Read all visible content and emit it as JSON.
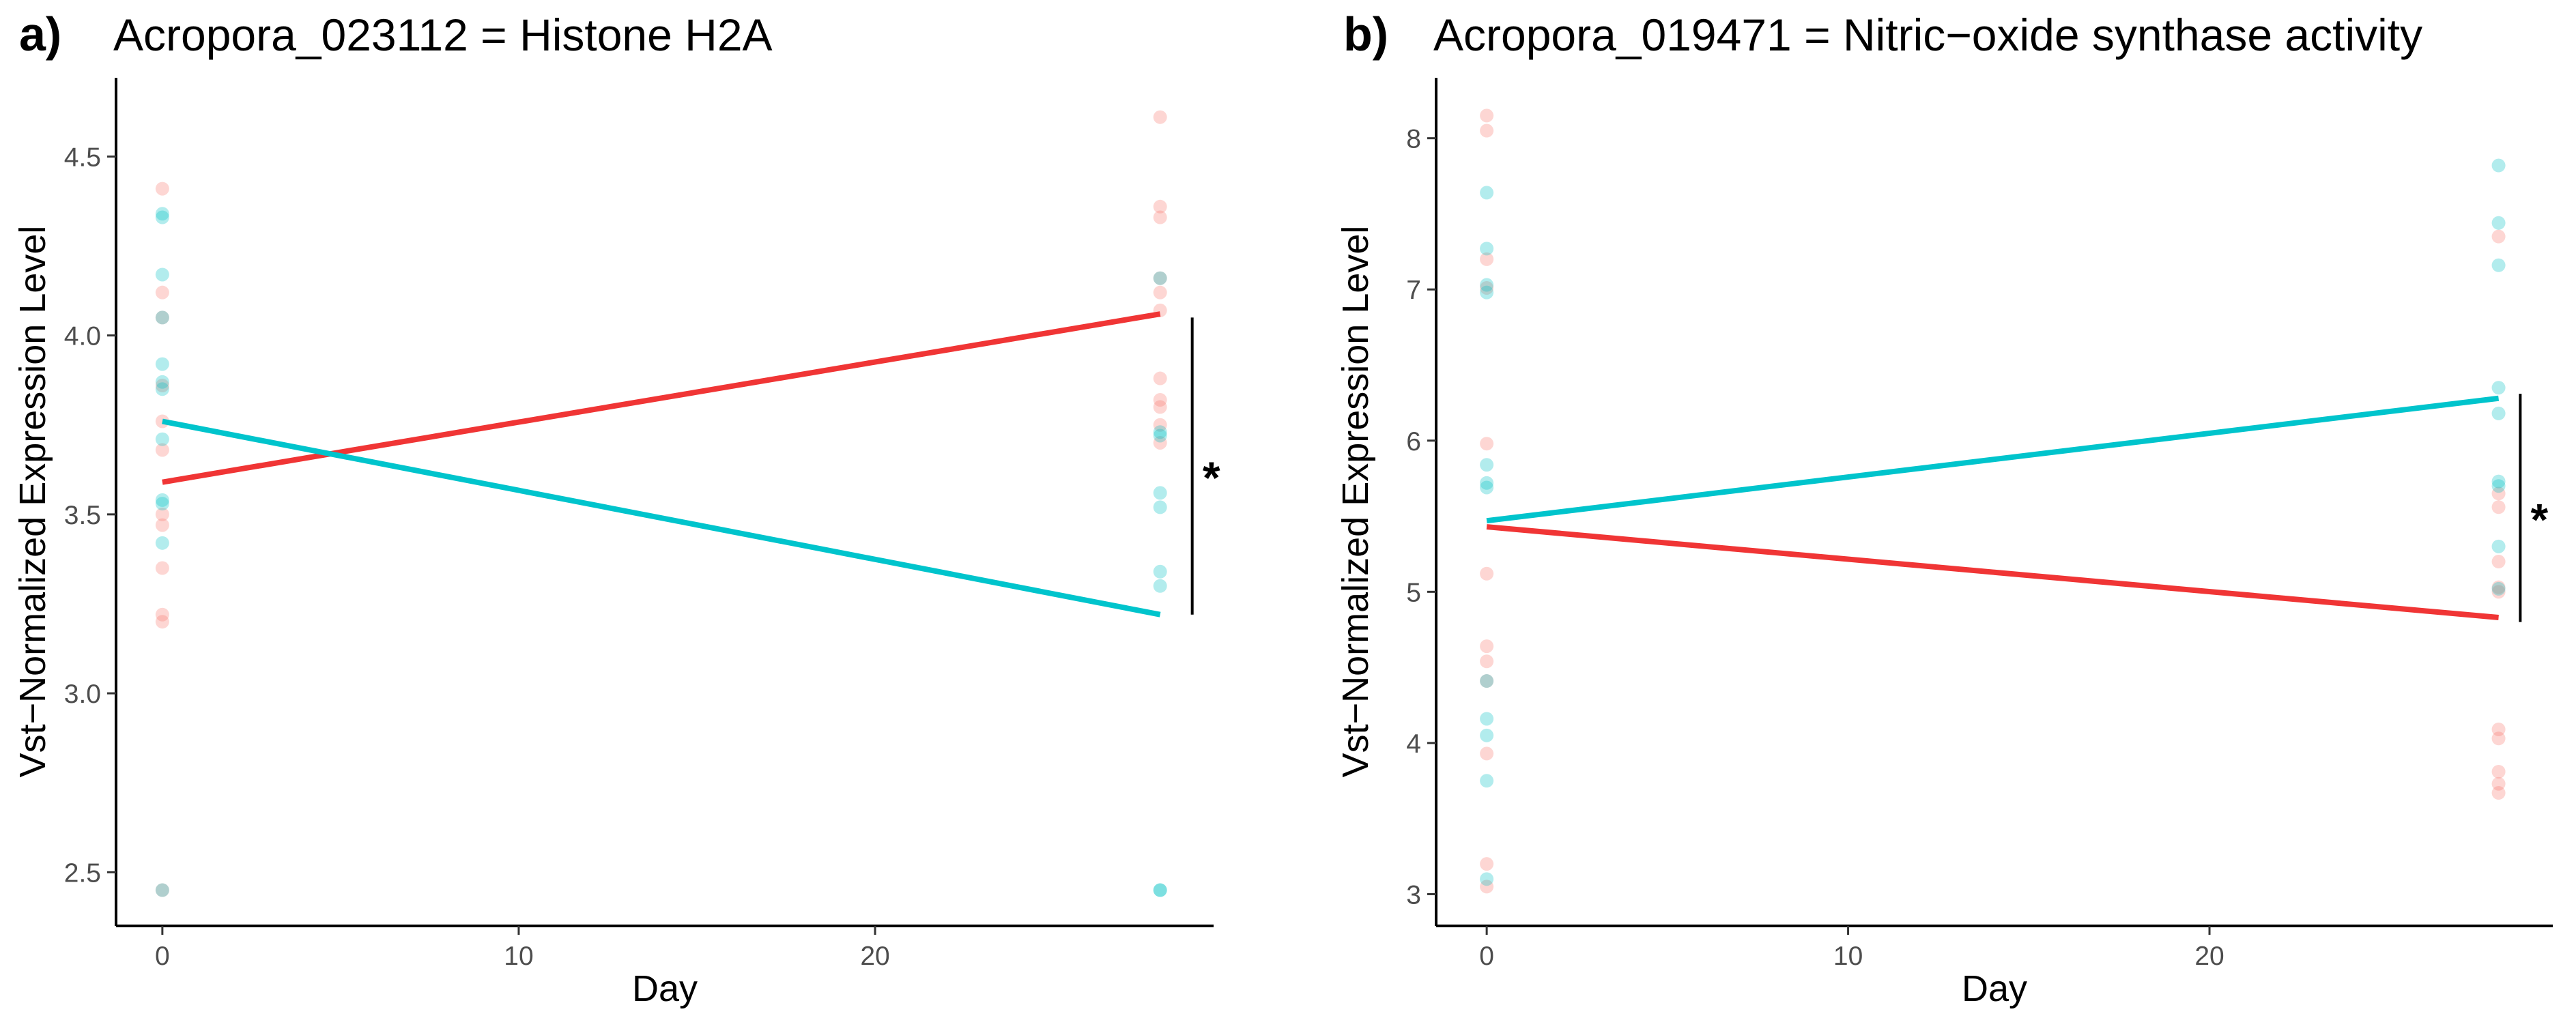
{
  "colors": {
    "series_a": "#F8766D",
    "series_b": "#00BFC4",
    "line_a": "#F03535",
    "line_b": "#00C4CC"
  },
  "chart_data": [
    {
      "type": "scatter",
      "panel_label": "a)",
      "title": "Acropora_023112 = Histone H2A",
      "xlabel": "Day",
      "ylabel": "Vst−Normalized Expression Level",
      "xlim": [
        -1.3,
        29.5
      ],
      "ylim": [
        2.35,
        4.72
      ],
      "xticks": [
        0,
        10,
        20
      ],
      "yticks": [
        2.5,
        3.0,
        3.5,
        4.0,
        4.5
      ],
      "ytick_labels": [
        "2.5",
        "3.0",
        "3.5",
        "4.0",
        "4.5"
      ],
      "grid": false,
      "legend": "none",
      "series": [
        {
          "color": "#F8766D",
          "points": [
            {
              "x": 0,
              "y": 4.41
            },
            {
              "x": 0,
              "y": 4.12
            },
            {
              "x": 0,
              "y": 4.05
            },
            {
              "x": 0,
              "y": 3.86
            },
            {
              "x": 0,
              "y": 3.76
            },
            {
              "x": 0,
              "y": 3.68
            },
            {
              "x": 0,
              "y": 3.5
            },
            {
              "x": 0,
              "y": 3.47
            },
            {
              "x": 0,
              "y": 3.35
            },
            {
              "x": 0,
              "y": 3.22
            },
            {
              "x": 0,
              "y": 3.2
            },
            {
              "x": 0,
              "y": 2.45
            },
            {
              "x": 28,
              "y": 4.61
            },
            {
              "x": 28,
              "y": 4.36
            },
            {
              "x": 28,
              "y": 4.33
            },
            {
              "x": 28,
              "y": 4.16
            },
            {
              "x": 28,
              "y": 4.12
            },
            {
              "x": 28,
              "y": 4.07
            },
            {
              "x": 28,
              "y": 3.88
            },
            {
              "x": 28,
              "y": 3.82
            },
            {
              "x": 28,
              "y": 3.8
            },
            {
              "x": 28,
              "y": 3.75
            },
            {
              "x": 28,
              "y": 3.7
            }
          ],
          "trend": {
            "x": [
              0,
              28
            ],
            "y": [
              3.59,
              4.06
            ],
            "color": "#F03535"
          }
        },
        {
          "color": "#00BFC4",
          "points": [
            {
              "x": 0,
              "y": 4.34
            },
            {
              "x": 0,
              "y": 4.33
            },
            {
              "x": 0,
              "y": 4.17
            },
            {
              "x": 0,
              "y": 4.05
            },
            {
              "x": 0,
              "y": 3.92
            },
            {
              "x": 0,
              "y": 3.87
            },
            {
              "x": 0,
              "y": 3.85
            },
            {
              "x": 0,
              "y": 3.71
            },
            {
              "x": 0,
              "y": 3.54
            },
            {
              "x": 0,
              "y": 3.53
            },
            {
              "x": 0,
              "y": 3.42
            },
            {
              "x": 0,
              "y": 2.45
            },
            {
              "x": 28,
              "y": 4.16
            },
            {
              "x": 28,
              "y": 3.73
            },
            {
              "x": 28,
              "y": 3.72
            },
            {
              "x": 28,
              "y": 3.56
            },
            {
              "x": 28,
              "y": 3.52
            },
            {
              "x": 28,
              "y": 3.34
            },
            {
              "x": 28,
              "y": 3.3
            },
            {
              "x": 28,
              "y": 2.45
            },
            {
              "x": 28,
              "y": 2.45
            }
          ],
          "trend": {
            "x": [
              0,
              28
            ],
            "y": [
              3.76,
              3.22
            ],
            "color": "#00C4CC"
          }
        }
      ],
      "annotation": {
        "text": "*",
        "x": 28.9,
        "y_range": [
          3.22,
          4.05
        ]
      }
    },
    {
      "type": "scatter",
      "panel_label": "b)",
      "title": "Acropora_019471 = Nitric−oxide synthase activity",
      "xlabel": "Day",
      "ylabel": "Vst−Normalized Expression Level",
      "xlim": [
        -1.4,
        29.5
      ],
      "ylim": [
        2.79,
        8.4
      ],
      "xticks": [
        0,
        10,
        20
      ],
      "yticks": [
        3,
        4,
        5,
        6,
        7,
        8
      ],
      "ytick_labels": [
        "3",
        "4",
        "5",
        "6",
        "7",
        "8"
      ],
      "grid": false,
      "legend": "none",
      "series": [
        {
          "color": "#F8766D",
          "points": [
            {
              "x": 0,
              "y": 8.15
            },
            {
              "x": 0,
              "y": 8.05
            },
            {
              "x": 0,
              "y": 7.2
            },
            {
              "x": 0,
              "y": 7.01
            },
            {
              "x": 0,
              "y": 5.98
            },
            {
              "x": 0,
              "y": 5.12
            },
            {
              "x": 0,
              "y": 4.64
            },
            {
              "x": 0,
              "y": 4.54
            },
            {
              "x": 0,
              "y": 4.41
            },
            {
              "x": 0,
              "y": 3.93
            },
            {
              "x": 0,
              "y": 3.2
            },
            {
              "x": 0,
              "y": 3.05
            },
            {
              "x": 28,
              "y": 7.35
            },
            {
              "x": 28,
              "y": 5.65
            },
            {
              "x": 28,
              "y": 5.56
            },
            {
              "x": 28,
              "y": 5.2
            },
            {
              "x": 28,
              "y": 5.03
            },
            {
              "x": 28,
              "y": 5.0
            },
            {
              "x": 28,
              "y": 4.09
            },
            {
              "x": 28,
              "y": 4.03
            },
            {
              "x": 28,
              "y": 3.81
            },
            {
              "x": 28,
              "y": 3.73
            },
            {
              "x": 28,
              "y": 3.67
            }
          ],
          "trend": {
            "x": [
              0,
              28
            ],
            "y": [
              5.43,
              4.83
            ],
            "color": "#F03535"
          }
        },
        {
          "color": "#00BFC4",
          "points": [
            {
              "x": 0,
              "y": 7.64
            },
            {
              "x": 0,
              "y": 7.27
            },
            {
              "x": 0,
              "y": 7.03
            },
            {
              "x": 0,
              "y": 6.98
            },
            {
              "x": 0,
              "y": 5.84
            },
            {
              "x": 0,
              "y": 5.72
            },
            {
              "x": 0,
              "y": 5.69
            },
            {
              "x": 0,
              "y": 4.41
            },
            {
              "x": 0,
              "y": 4.16
            },
            {
              "x": 0,
              "y": 4.05
            },
            {
              "x": 0,
              "y": 3.75
            },
            {
              "x": 0,
              "y": 3.1
            },
            {
              "x": 28,
              "y": 7.82
            },
            {
              "x": 28,
              "y": 7.44
            },
            {
              "x": 28,
              "y": 7.16
            },
            {
              "x": 28,
              "y": 6.35
            },
            {
              "x": 28,
              "y": 6.18
            },
            {
              "x": 28,
              "y": 5.73
            },
            {
              "x": 28,
              "y": 5.7
            },
            {
              "x": 28,
              "y": 5.3
            },
            {
              "x": 28,
              "y": 5.02
            }
          ],
          "trend": {
            "x": [
              0,
              28
            ],
            "y": [
              5.47,
              6.28
            ],
            "color": "#00C4CC"
          }
        }
      ],
      "annotation": {
        "text": "*",
        "x": 28.6,
        "y_range": [
          4.8,
          6.31
        ]
      }
    }
  ]
}
